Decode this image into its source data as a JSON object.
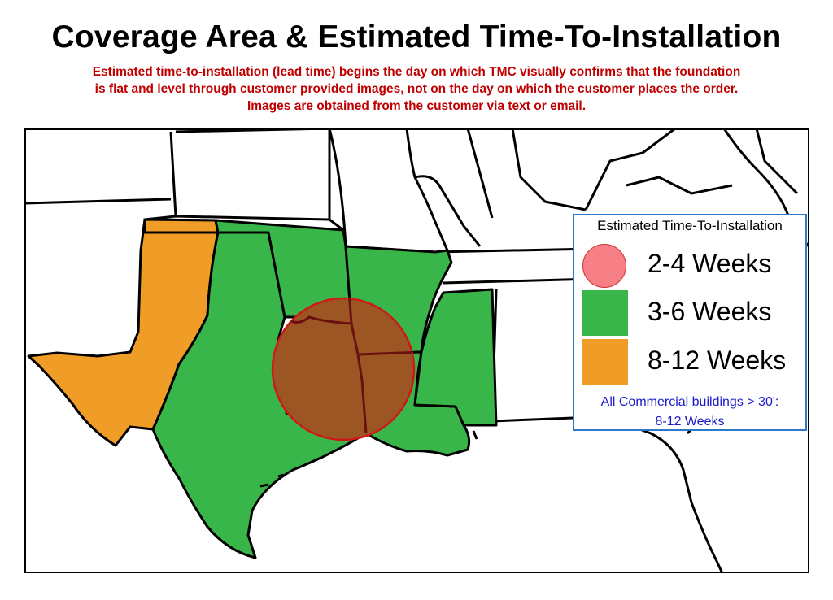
{
  "title": "Coverage Area & Estimated Time-To-Installation",
  "subtitle_lines": [
    "Estimated time-to-installation (lead time) begins the day on which TMC visually confirms that the foundation",
    "is flat and level through customer provided images, not on the day on which the customer places the order.",
    "Images are obtained from the customer via text or email."
  ],
  "legend": {
    "title": "Estimated Time-To-Installation",
    "items": [
      {
        "label": "2-4 Weeks",
        "color": "#f77f86",
        "shape": "circle"
      },
      {
        "label": "3-6 Weeks",
        "color": "#38b649",
        "shape": "square"
      },
      {
        "label": "8-12 Weeks",
        "color": "#f09d28",
        "shape": "square"
      }
    ],
    "note_lines": [
      "All Commercial buildings > 30':",
      "8-12 Weeks"
    ]
  },
  "map": {
    "regions": [
      {
        "name": "Texas (central and east)",
        "zone": "3-6 Weeks",
        "color": "#38b649"
      },
      {
        "name": "Texas (west and panhandle)",
        "zone": "8-12 Weeks",
        "color": "#f09d28"
      },
      {
        "name": "Oklahoma",
        "zone": "3-6 Weeks",
        "color": "#38b649"
      },
      {
        "name": "Arkansas",
        "zone": "3-6 Weeks",
        "color": "#38b649"
      },
      {
        "name": "Louisiana",
        "zone": "3-6 Weeks",
        "color": "#38b649"
      },
      {
        "name": "Mississippi",
        "zone": "3-6 Weeks",
        "color": "#38b649"
      },
      {
        "name": "Ark-La-Tex area",
        "zone": "2-4 Weeks",
        "color": "#f77f86"
      }
    ],
    "outline_color": "#000000",
    "circle_fill": "#9b5623",
    "circle_stroke": "#d01818",
    "border_in_circle_color": "#6b1010"
  }
}
